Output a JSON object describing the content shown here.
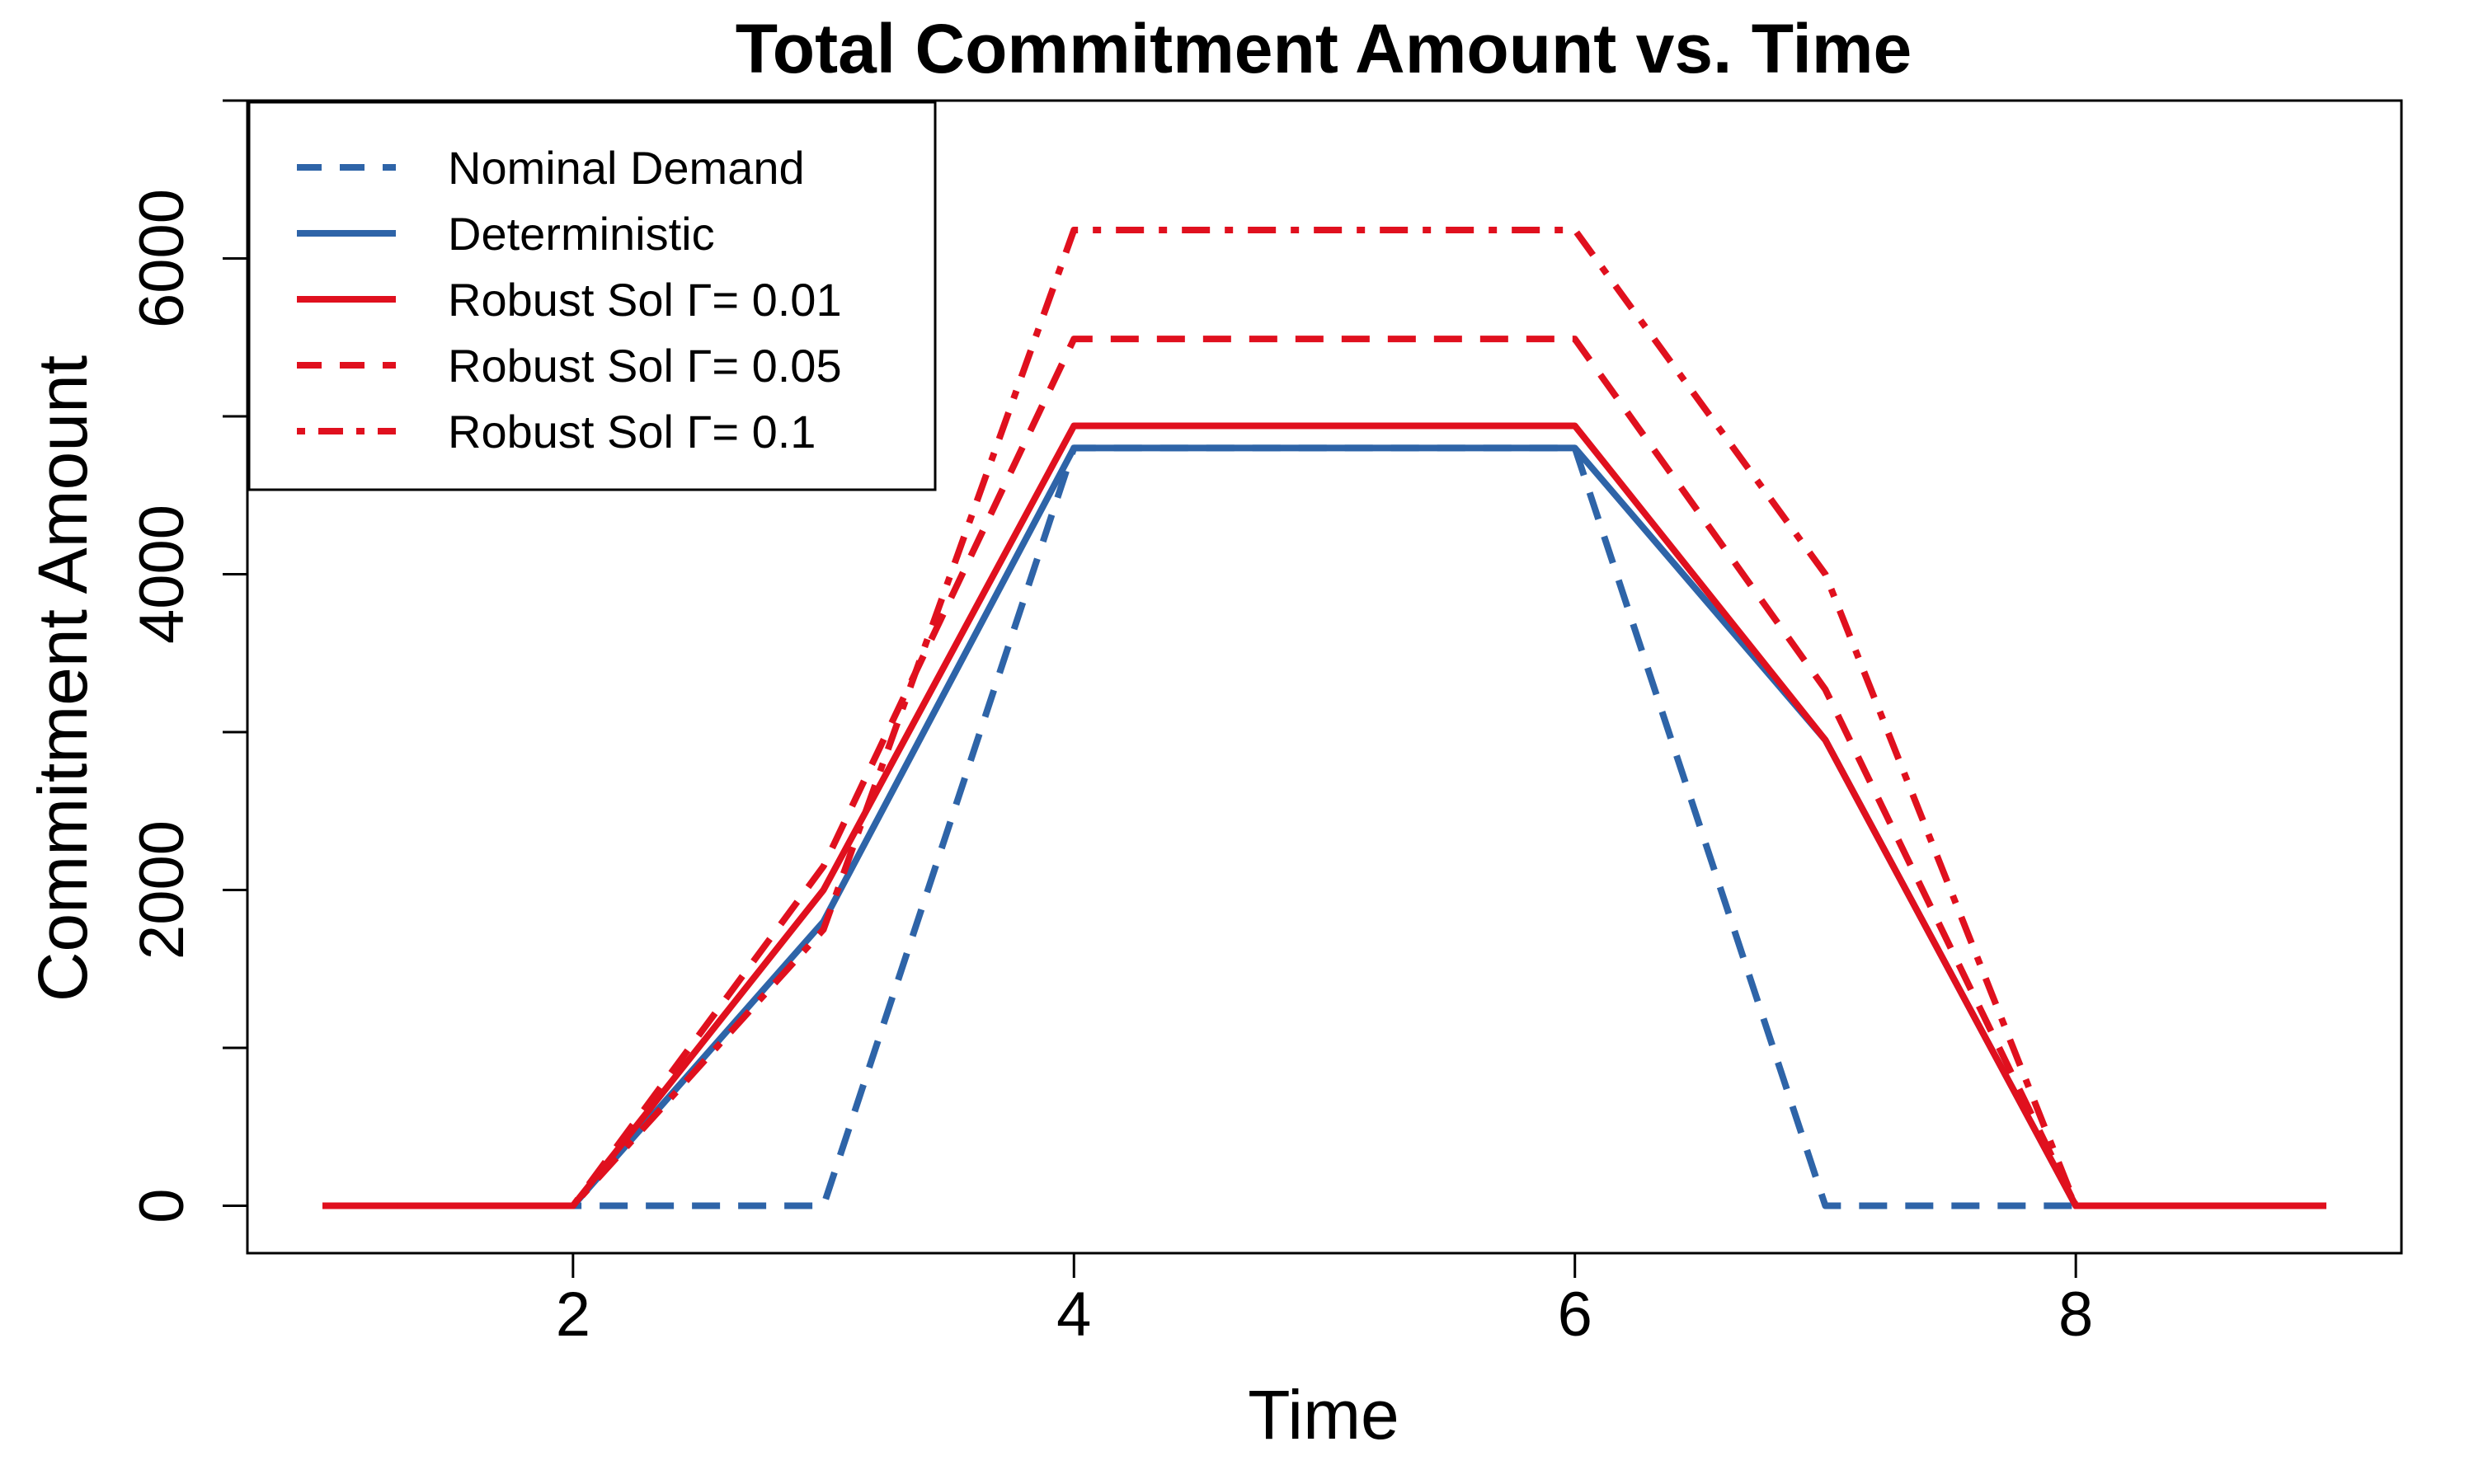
{
  "chart_data": {
    "type": "line",
    "title": "Total Commitment Amount vs. Time",
    "xlabel": "Time",
    "ylabel": "Commitment Amount",
    "xlim": [
      0.7,
      9.3
    ],
    "ylim": [
      -300,
      7000
    ],
    "x_ticks": [
      2,
      4,
      6,
      8
    ],
    "y_ticks": [
      0,
      2000,
      4000,
      6000
    ],
    "y_minor_ticks": [
      1000,
      3000,
      5000,
      7000
    ],
    "x": [
      1,
      2,
      3,
      4,
      5,
      6,
      7,
      8,
      9
    ],
    "legend_position": "top-left",
    "grid": false,
    "series": [
      {
        "name": "Nominal Demand",
        "color": "#2E64A8",
        "dash": "dashed",
        "values": [
          0,
          0,
          0,
          4800,
          4800,
          4800,
          0,
          0,
          0
        ]
      },
      {
        "name": "Deterministic",
        "color": "#2E64A8",
        "dash": "solid",
        "values": [
          0,
          0,
          1800,
          4800,
          4800,
          4800,
          2950,
          0,
          0
        ]
      },
      {
        "name": "Robust Sol Γ= 0.01",
        "color": "#E0101E",
        "dash": "solid",
        "values": [
          0,
          0,
          2000,
          4940,
          4940,
          4940,
          2950,
          0,
          0
        ]
      },
      {
        "name": "Robust Sol Γ= 0.05",
        "color": "#E0101E",
        "dash": "dashed",
        "values": [
          0,
          0,
          2150,
          5490,
          5490,
          5490,
          3270,
          0,
          0
        ]
      },
      {
        "name": "Robust Sol Γ= 0.1",
        "color": "#E0101E",
        "dash": "dotdash",
        "values": [
          0,
          0,
          1750,
          6180,
          6180,
          6180,
          4000,
          0,
          0
        ]
      }
    ]
  }
}
